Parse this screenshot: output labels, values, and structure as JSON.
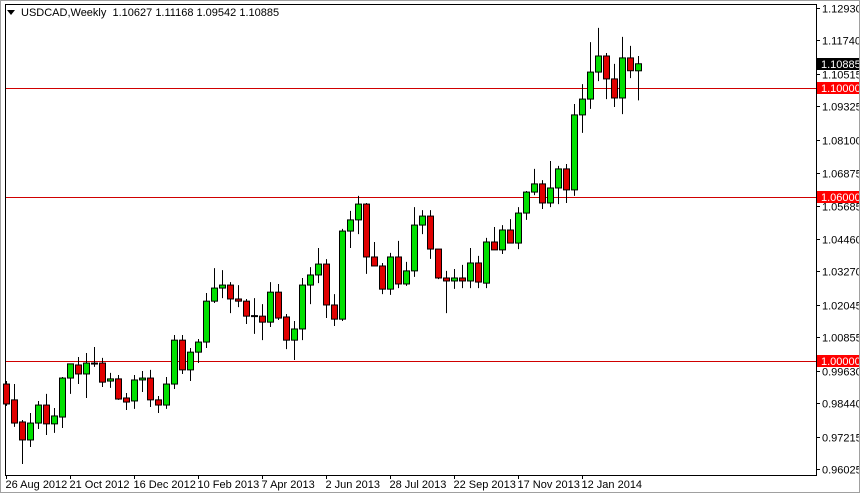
{
  "header": {
    "symbol_timeframe": "USDCAD,Weekly",
    "ohlc": "1.10627 1.11168 1.09542 1.10885"
  },
  "colors": {
    "bull": "#00e000",
    "bear": "#e00000",
    "outline": "#000000",
    "level_line": "#d00000",
    "level_label_bg": "#ff0000",
    "current_price_bg": "#000000"
  },
  "chart_data": {
    "type": "candlestick",
    "title": "USDCAD,Weekly",
    "ylim": [
      0.96025,
      1.1293
    ],
    "grid": false,
    "y_ticks": [
      "1.12930",
      "1.11740",
      "1.10515",
      "1.09325",
      "1.08100",
      "1.06875",
      "1.05685",
      "1.04460",
      "1.03270",
      "1.02045",
      "1.00855",
      "0.99630",
      "0.98440",
      "0.97215",
      "0.96025"
    ],
    "x_ticks": [
      "26 Aug 2012",
      "21 Oct 2012",
      "16 Dec 2012",
      "10 Feb 2013",
      "7 Apr 2013",
      "2 Jun 2013",
      "28 Jul 2013",
      "22 Sep 2013",
      "17 Nov 2013",
      "12 Jan 2014"
    ],
    "x_tick_every_n_weeks": 8,
    "horizontal_levels": [
      "1.10000",
      "1.06000",
      "1.00000"
    ],
    "current_price": "1.10885",
    "candles": [
      [
        0.9914,
        0.9925,
        0.9834,
        0.9841
      ],
      [
        0.9856,
        0.9914,
        0.9757,
        0.9771
      ],
      [
        0.9775,
        0.9782,
        0.9621,
        0.9709
      ],
      [
        0.9709,
        0.9808,
        0.9683,
        0.9771
      ],
      [
        0.9771,
        0.9852,
        0.9749,
        0.9837
      ],
      [
        0.9837,
        0.9878,
        0.9727,
        0.9768
      ],
      [
        0.9768,
        0.9826,
        0.9735,
        0.9797
      ],
      [
        0.9793,
        0.994,
        0.9753,
        0.9936
      ],
      [
        0.9936,
        0.9988,
        0.9878,
        0.9988
      ],
      [
        0.9984,
        1.0013,
        0.9914,
        0.9951
      ],
      [
        0.9951,
        1.0028,
        0.9863,
        0.9991
      ],
      [
        0.9991,
        1.005,
        0.9977,
        0.9988
      ],
      [
        0.9991,
        1.001,
        0.9903,
        0.9921
      ],
      [
        0.9925,
        0.9955,
        0.99,
        0.9933
      ],
      [
        0.9933,
        0.9947,
        0.9856,
        0.9859
      ],
      [
        0.9863,
        0.9881,
        0.9819,
        0.9848
      ],
      [
        0.9852,
        0.9947,
        0.9823,
        0.9929
      ],
      [
        0.9929,
        0.9962,
        0.9885,
        0.9936
      ],
      [
        0.9936,
        0.9966,
        0.983,
        0.9856
      ],
      [
        0.9856,
        0.987,
        0.9808,
        0.9837
      ],
      [
        0.9837,
        0.994,
        0.9823,
        0.9914
      ],
      [
        0.9914,
        1.0094,
        0.9896,
        1.0075
      ],
      [
        1.0075,
        1.0094,
        0.9951,
        0.9966
      ],
      [
        0.9966,
        1.0046,
        0.9925,
        1.0031
      ],
      [
        1.0031,
        1.0079,
        0.9991,
        1.0068
      ],
      [
        1.0068,
        1.0248,
        1.0046,
        1.0218
      ],
      [
        1.0218,
        1.0339,
        1.0211,
        1.0266
      ],
      [
        1.0266,
        1.0332,
        1.0229,
        1.0277
      ],
      [
        1.0277,
        1.0288,
        1.0174,
        1.0226
      ],
      [
        1.0226,
        1.0277,
        1.0196,
        1.0218
      ],
      [
        1.0218,
        1.0226,
        1.0134,
        1.0163
      ],
      [
        1.0163,
        1.0229,
        1.0098,
        1.0165
      ],
      [
        1.0163,
        1.0207,
        1.0075,
        1.0141
      ],
      [
        1.0141,
        1.0288,
        1.0123,
        1.0251
      ],
      [
        1.0251,
        1.0281,
        1.0149,
        1.0156
      ],
      [
        1.016,
        1.0171,
        1.0042,
        1.0075
      ],
      [
        1.0075,
        1.0145,
        1.0002,
        1.0116
      ],
      [
        1.0116,
        1.0303,
        1.0075,
        1.0277
      ],
      [
        1.0277,
        1.0343,
        1.0207,
        1.0314
      ],
      [
        1.0314,
        1.0413,
        1.0284,
        1.0354
      ],
      [
        1.0354,
        1.0372,
        1.0156,
        1.0204
      ],
      [
        1.0204,
        1.0244,
        1.0127,
        1.0152
      ],
      [
        1.0152,
        1.0483,
        1.0145,
        1.0475
      ],
      [
        1.0475,
        1.0549,
        1.0413,
        1.0516
      ],
      [
        1.0516,
        1.0604,
        1.0464,
        1.0574
      ],
      [
        1.0574,
        1.0578,
        1.0318,
        1.038
      ],
      [
        1.038,
        1.0435,
        1.0347,
        1.0347
      ],
      [
        1.0347,
        1.0358,
        1.0244,
        1.0262
      ],
      [
        1.0262,
        1.0395,
        1.0241,
        1.038
      ],
      [
        1.038,
        1.0439,
        1.0266,
        1.0281
      ],
      [
        1.0281,
        1.0362,
        1.0274,
        1.0329
      ],
      [
        1.0329,
        1.0563,
        1.0307,
        1.0497
      ],
      [
        1.0497,
        1.0552,
        1.0464,
        1.053
      ],
      [
        1.053,
        1.0552,
        1.0373,
        1.0409
      ],
      [
        1.0409,
        1.0409,
        1.0299,
        1.0303
      ],
      [
        1.0303,
        1.0329,
        1.0174,
        1.0292
      ],
      [
        1.0292,
        1.0336,
        1.0263,
        1.0303
      ],
      [
        1.0303,
        1.0351,
        1.0266,
        1.0292
      ],
      [
        1.0292,
        1.0413,
        1.0266,
        1.0358
      ],
      [
        1.0358,
        1.0384,
        1.0266,
        1.0288
      ],
      [
        1.0284,
        1.045,
        1.0266,
        1.0435
      ],
      [
        1.0435,
        1.049,
        1.0406,
        1.0406
      ],
      [
        1.0406,
        1.0497,
        1.0391,
        1.0479
      ],
      [
        1.0479,
        1.0519,
        1.0431,
        1.0431
      ],
      [
        1.0431,
        1.0563,
        1.0409,
        1.0541
      ],
      [
        1.0541,
        1.0622,
        1.0516,
        1.0618
      ],
      [
        1.0618,
        1.0703,
        1.0607,
        1.0648
      ],
      [
        1.0648,
        1.0662,
        1.0556,
        1.0578
      ],
      [
        1.0578,
        1.0732,
        1.0563,
        1.0633
      ],
      [
        1.0633,
        1.0714,
        1.0574,
        1.0703
      ],
      [
        1.0703,
        1.0721,
        1.0578,
        1.0626
      ],
      [
        1.0626,
        1.0941,
        1.0604,
        1.0901
      ],
      [
        1.0901,
        1.1014,
        1.0835,
        1.0959
      ],
      [
        1.0959,
        1.1168,
        1.0923,
        1.1058
      ],
      [
        1.1058,
        1.122,
        1.1025,
        1.1117
      ],
      [
        1.1117,
        1.1128,
        1.0959,
        1.1033
      ],
      [
        1.1033,
        1.1088,
        1.093,
        1.0963
      ],
      [
        1.0963,
        1.1187,
        1.0904,
        1.111
      ],
      [
        1.111,
        1.1154,
        1.1036,
        1.1063
      ],
      [
        1.10627,
        1.11168,
        1.09542,
        1.10885
      ]
    ]
  }
}
